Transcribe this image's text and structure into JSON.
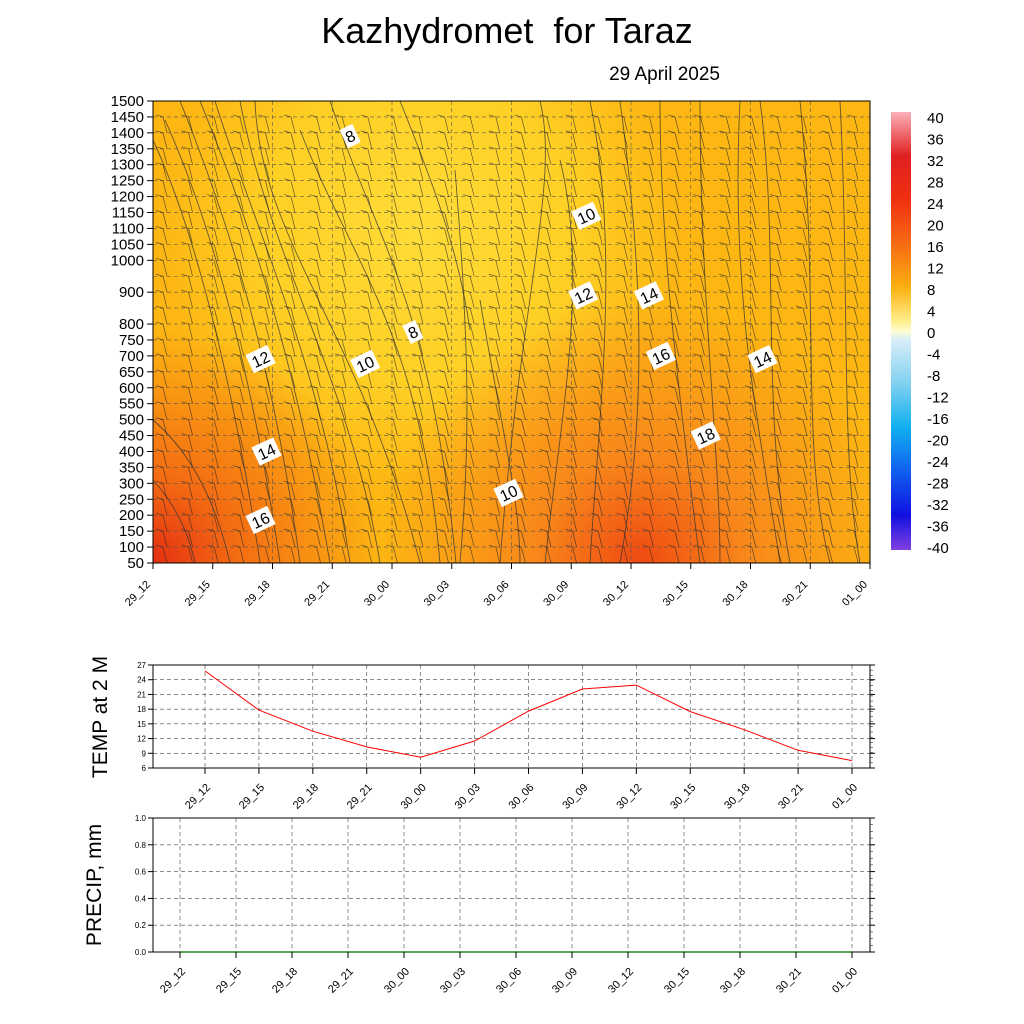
{
  "title": "Kazhydromet  for Taraz",
  "date": "29 April 2025",
  "time_labels": [
    "29_12",
    "29_15",
    "29_18",
    "29_21",
    "30_00",
    "30_03",
    "30_06",
    "30_09",
    "30_12",
    "30_15",
    "30_18",
    "30_21",
    "01_00"
  ],
  "colors": {
    "warm_strong": "#e83010",
    "warm_mid": "#f98a10",
    "warm_light": "#ffb50c",
    "warm_pale": "#ffd830",
    "line_red": "#ff0000",
    "contour": "#333333"
  },
  "chart_data": [
    {
      "type": "heatmap",
      "name": "vertical temperature cross-section",
      "x": [
        "29_12",
        "29_15",
        "29_18",
        "29_21",
        "30_00",
        "30_03",
        "30_06",
        "30_09",
        "30_12",
        "30_15",
        "30_18",
        "30_21",
        "01_00"
      ],
      "y_levels": [
        50,
        100,
        150,
        200,
        250,
        300,
        350,
        400,
        450,
        500,
        550,
        600,
        650,
        700,
        750,
        800,
        850,
        900,
        950,
        1000,
        1050,
        1100,
        1150,
        1200,
        1250,
        1300,
        1350,
        1400,
        1450,
        1500
      ],
      "y_tick_labels": [
        "50",
        "100",
        "150",
        "200",
        "250",
        "300",
        "350",
        "400",
        "450",
        "500",
        "550",
        "600",
        "650",
        "700",
        "750",
        "800",
        "900",
        "1000",
        "1050",
        "1100",
        "1150",
        "1200",
        "1250",
        "1300",
        "1350",
        "1400",
        "1450",
        "1500"
      ],
      "ylim": [
        50,
        1500
      ],
      "colorbar_labels": [
        "40",
        "36",
        "32",
        "28",
        "24",
        "20",
        "16",
        "12",
        "8",
        "4",
        "0",
        "-4",
        "-8",
        "-12",
        "-16",
        "-20",
        "-24",
        "-28",
        "-32",
        "-36",
        "-40"
      ],
      "contour_labels": [
        {
          "text": "8",
          "time": 3.3,
          "level": 1390
        },
        {
          "text": "8",
          "time": 4.35,
          "level": 775
        },
        {
          "text": "10",
          "time": 7.25,
          "level": 1140
        },
        {
          "text": "10",
          "time": 3.55,
          "level": 675
        },
        {
          "text": "10",
          "time": 5.95,
          "level": 270
        },
        {
          "text": "12",
          "time": 1.8,
          "level": 690
        },
        {
          "text": "12",
          "time": 7.2,
          "level": 890
        },
        {
          "text": "14",
          "time": 1.9,
          "level": 400
        },
        {
          "text": "14",
          "time": 8.3,
          "level": 890
        },
        {
          "text": "14",
          "time": 10.2,
          "level": 690
        },
        {
          "text": "16",
          "time": 1.8,
          "level": 185
        },
        {
          "text": "16",
          "time": 8.5,
          "level": 700
        },
        {
          "text": "18",
          "time": 9.25,
          "level": 450
        }
      ],
      "grid": true
    },
    {
      "type": "line",
      "ylabel": "TEMP at 2 M",
      "x": [
        "29_12",
        "29_15",
        "29_18",
        "29_21",
        "30_00",
        "30_03",
        "30_06",
        "30_09",
        "30_12",
        "30_15",
        "30_18",
        "30_21",
        "01_00"
      ],
      "series": [
        {
          "values": [
            25.8,
            17.8,
            13.5,
            10.3,
            8.2,
            11.5,
            17.6,
            22.1,
            22.9,
            17.5,
            13.8,
            9.6,
            7.5
          ],
          "color": "#ff0000"
        }
      ],
      "ylim": [
        6,
        27
      ],
      "y_ticks": [
        "6",
        "9",
        "12",
        "15",
        "18",
        "21",
        "24",
        "27"
      ],
      "grid": true
    },
    {
      "type": "line",
      "ylabel": "PRECIP, mm",
      "x": [
        "29_12",
        "29_15",
        "29_18",
        "29_21",
        "30_00",
        "30_03",
        "30_06",
        "30_09",
        "30_12",
        "30_15",
        "30_18",
        "30_21",
        "01_00"
      ],
      "series": [
        {
          "values": [
            0,
            0,
            0,
            0,
            0,
            0,
            0,
            0,
            0,
            0,
            0,
            0,
            0
          ],
          "color": "#2a8a2a"
        }
      ],
      "ylim": [
        0,
        1
      ],
      "y_ticks": [
        "0.0",
        "0.2",
        "0.4",
        "0.6",
        "0.8",
        "1.0"
      ],
      "grid": true
    }
  ]
}
